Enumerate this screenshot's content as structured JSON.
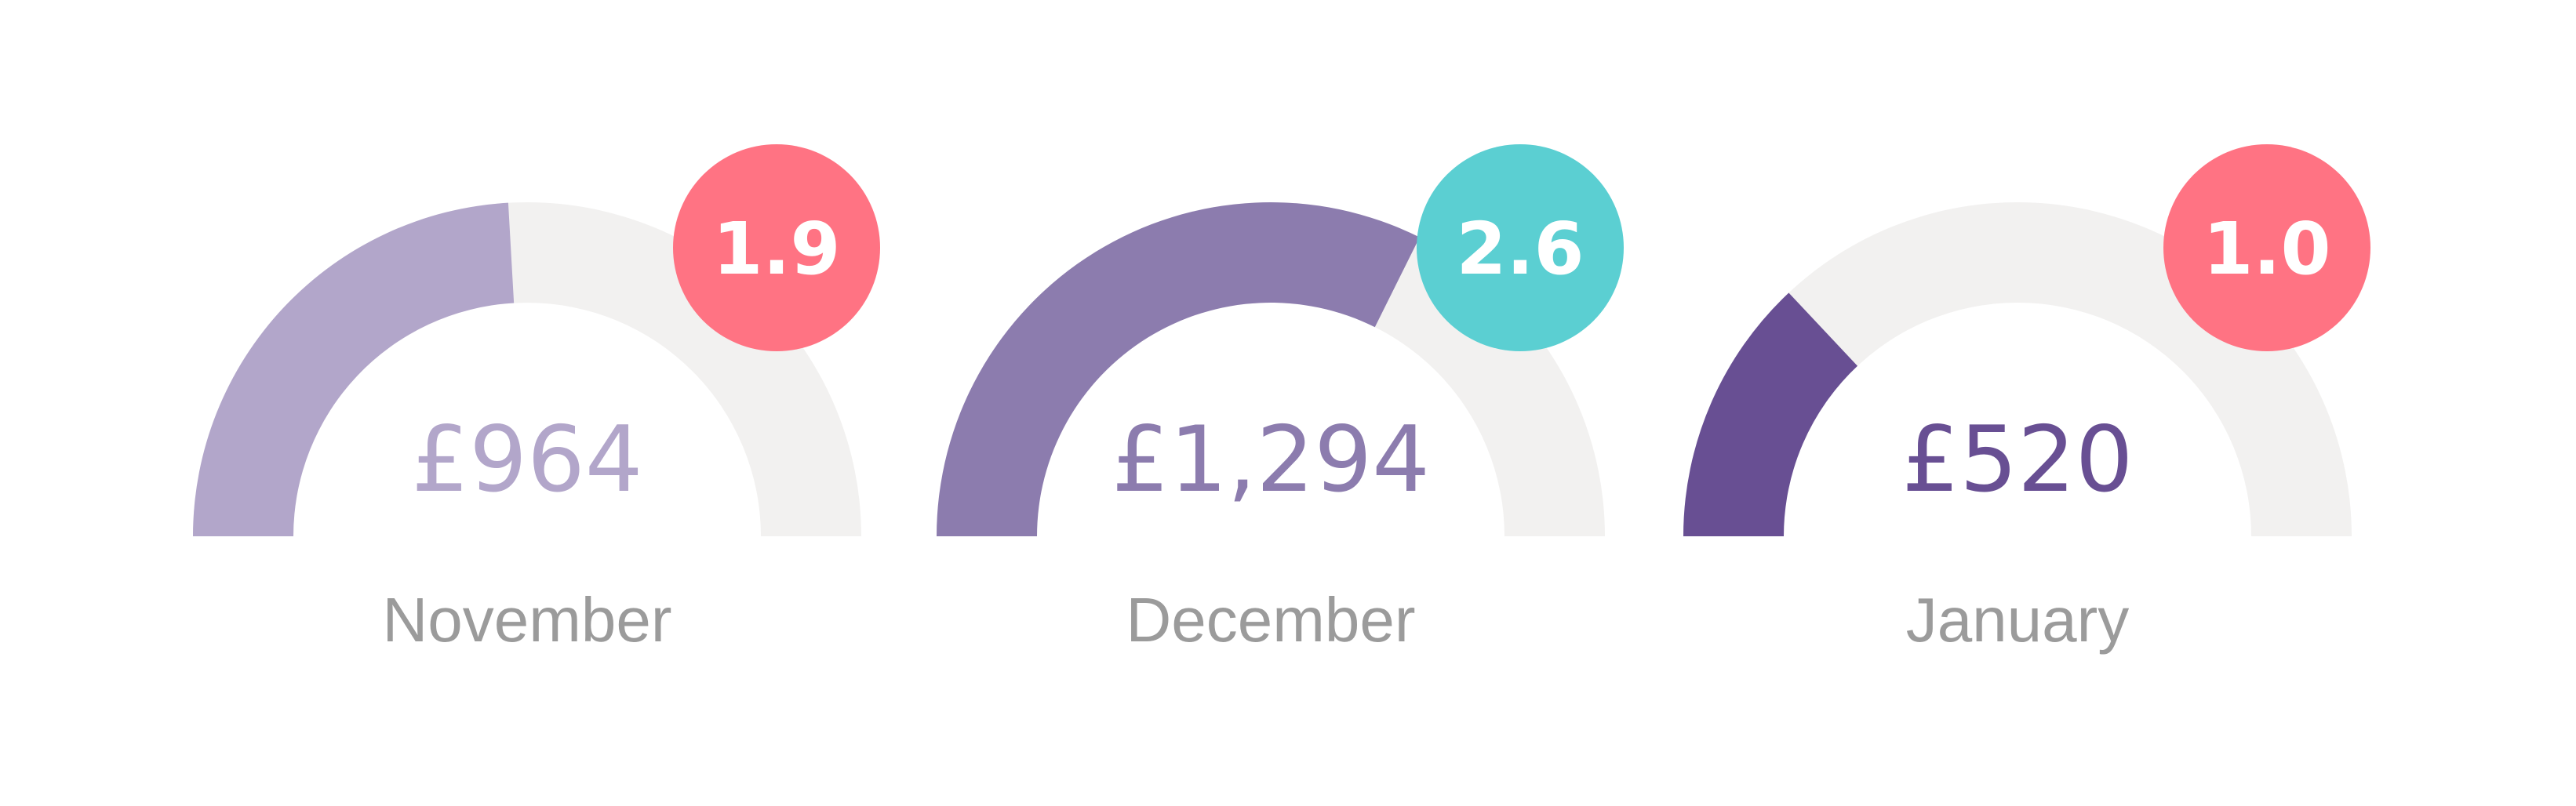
{
  "chart_data": {
    "type": "gauge",
    "scale": [
      0,
      2000
    ],
    "track_color": "#f2f1f0",
    "gauges": [
      {
        "month": "November",
        "amount_label": "£964",
        "amount": 964,
        "badge": "1.9",
        "badge_color": "#ff7383",
        "fill_color": "#b2a6ca",
        "text_color": "#b2a6ca"
      },
      {
        "month": "December",
        "amount_label": "£1,294",
        "amount": 1294,
        "badge": "2.6",
        "badge_color": "#5bcfd2",
        "fill_color": "#8c7cae",
        "text_color": "#8c7cae"
      },
      {
        "month": "January",
        "amount_label": "£520",
        "amount": 520,
        "badge": "1.0",
        "badge_color": "#ff7383",
        "fill_color": "#684f93",
        "text_color": "#684f93"
      }
    ]
  }
}
